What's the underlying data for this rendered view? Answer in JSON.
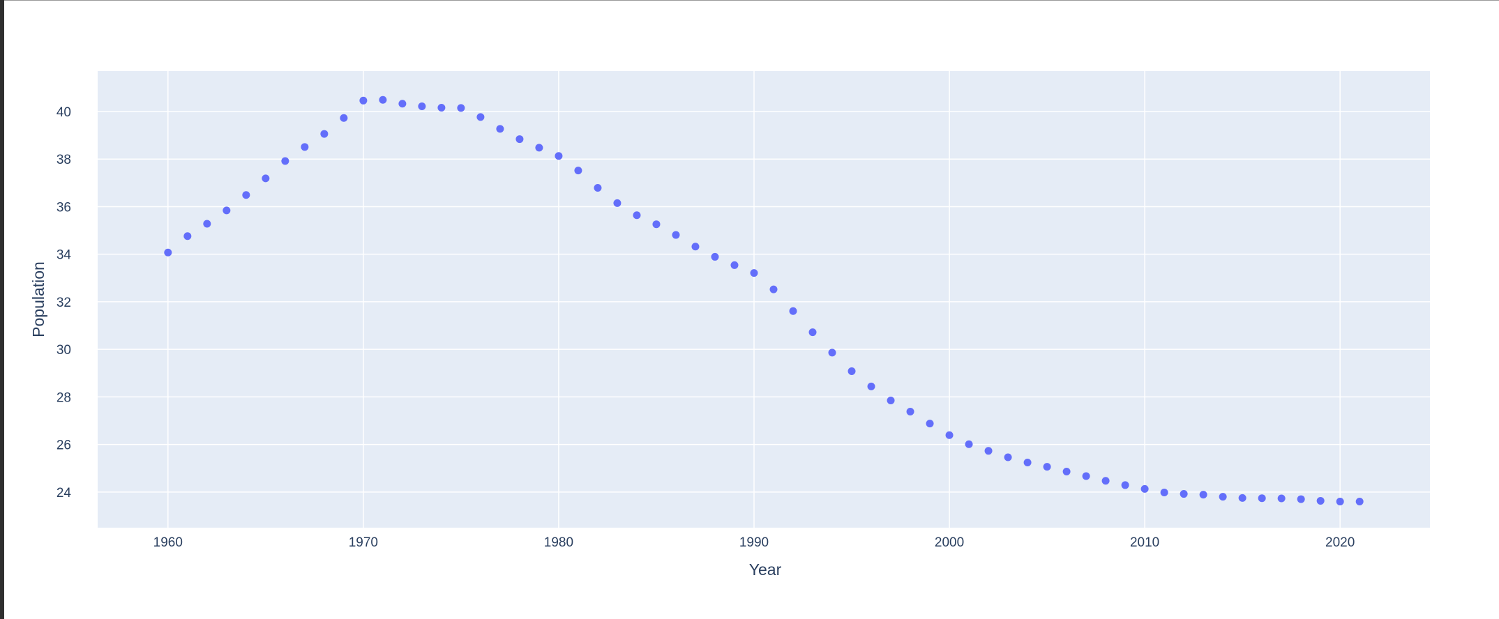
{
  "chart_data": {
    "type": "scatter",
    "title": "",
    "xlabel": "Year",
    "ylabel": "Population",
    "xlim": [
      1956.4,
      2024.6
    ],
    "ylim": [
      22.5,
      41.7
    ],
    "xticks": [
      1960,
      1970,
      1980,
      1990,
      2000,
      2010,
      2020
    ],
    "yticks": [
      24,
      26,
      28,
      30,
      32,
      34,
      36,
      38,
      40
    ],
    "grid": true,
    "colors": {
      "plot_background": "#e5ecf6",
      "grid": "#ffffff",
      "marker": "#636efa",
      "text": "#2a3f5f"
    },
    "series": [
      {
        "x": [
          1960,
          1961,
          1962,
          1963,
          1964,
          1965,
          1966,
          1967,
          1968,
          1969,
          1970,
          1971,
          1972,
          1973,
          1974,
          1975,
          1976,
          1977,
          1978,
          1979,
          1980,
          1981,
          1982,
          1983,
          1984,
          1985,
          1986,
          1987,
          1988,
          1989,
          1990,
          1991,
          1992,
          1993,
          1994,
          1995,
          1996,
          1997,
          1998,
          1999,
          2000,
          2001,
          2002,
          2003,
          2004,
          2005,
          2006,
          2007,
          2008,
          2009,
          2010,
          2011,
          2012,
          2013,
          2014,
          2015,
          2016,
          2017,
          2018,
          2019,
          2020,
          2021
        ],
        "y": [
          34.07,
          34.76,
          35.28,
          35.84,
          36.49,
          37.19,
          37.92,
          38.51,
          39.06,
          39.73,
          40.46,
          40.49,
          40.33,
          40.22,
          40.16,
          40.15,
          39.77,
          39.27,
          38.84,
          38.48,
          38.13,
          37.52,
          36.79,
          36.15,
          35.64,
          35.26,
          34.81,
          34.32,
          33.89,
          33.54,
          33.21,
          32.52,
          31.61,
          30.72,
          29.86,
          29.08,
          28.44,
          27.85,
          27.38,
          26.88,
          26.39,
          26.01,
          25.73,
          25.46,
          25.24,
          25.06,
          24.86,
          24.67,
          24.47,
          24.29,
          24.13,
          23.98,
          23.92,
          23.89,
          23.8,
          23.75,
          23.74,
          23.73,
          23.7,
          23.63,
          23.6,
          23.6
        ]
      }
    ]
  }
}
